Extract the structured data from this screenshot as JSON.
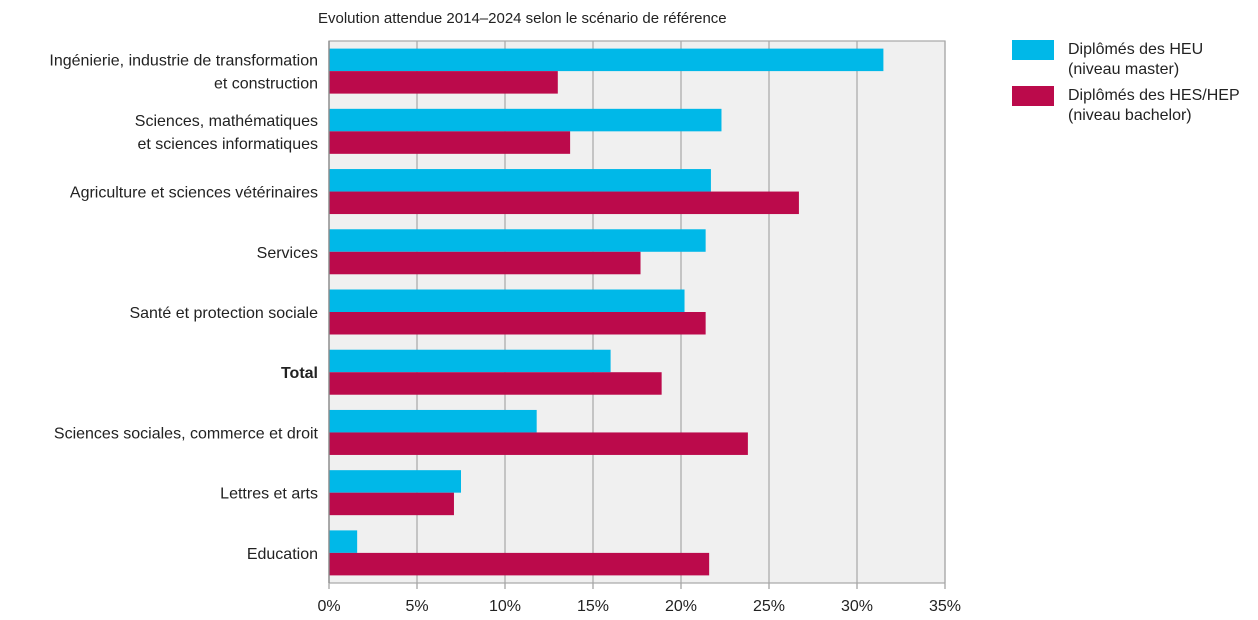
{
  "chart_data": {
    "type": "bar",
    "orientation": "horizontal",
    "title": "Evolution attendue 2014–2024 selon le scénario de référence",
    "categories": [
      [
        "Ingénierie, industrie de transformation",
        "et construction"
      ],
      [
        "Sciences, mathématiques",
        "et sciences informatiques"
      ],
      [
        "Agriculture et sciences vétérinaires"
      ],
      [
        "Services"
      ],
      [
        "Santé et protection sociale"
      ],
      [
        "Total"
      ],
      [
        "Sciences sociales, commerce et droit"
      ],
      [
        "Lettres et arts"
      ],
      [
        "Education"
      ]
    ],
    "bold_category": "Total",
    "series": [
      {
        "name": [
          "Diplômés des HEU",
          "(niveau master)"
        ],
        "color": "#00b8e8",
        "values": [
          31.5,
          22.3,
          21.7,
          21.4,
          20.2,
          16.0,
          11.8,
          7.5,
          1.6
        ]
      },
      {
        "name": [
          "Diplômés des HES/HEP",
          "(niveau bachelor)"
        ],
        "color": "#bb0a4b",
        "values": [
          13.0,
          13.7,
          26.7,
          17.7,
          21.4,
          18.9,
          23.8,
          7.1,
          21.6
        ]
      }
    ],
    "xlim": [
      0,
      35
    ],
    "xticks": [
      0,
      5,
      10,
      15,
      20,
      25,
      30,
      35
    ],
    "xtick_labels": [
      "0%",
      "5%",
      "10%",
      "15%",
      "20%",
      "25%",
      "30%",
      "35%"
    ],
    "xlabel": "",
    "ylabel": "",
    "grid": "vertical",
    "plot_background": "#f0f0f0",
    "legend_position": "right"
  }
}
